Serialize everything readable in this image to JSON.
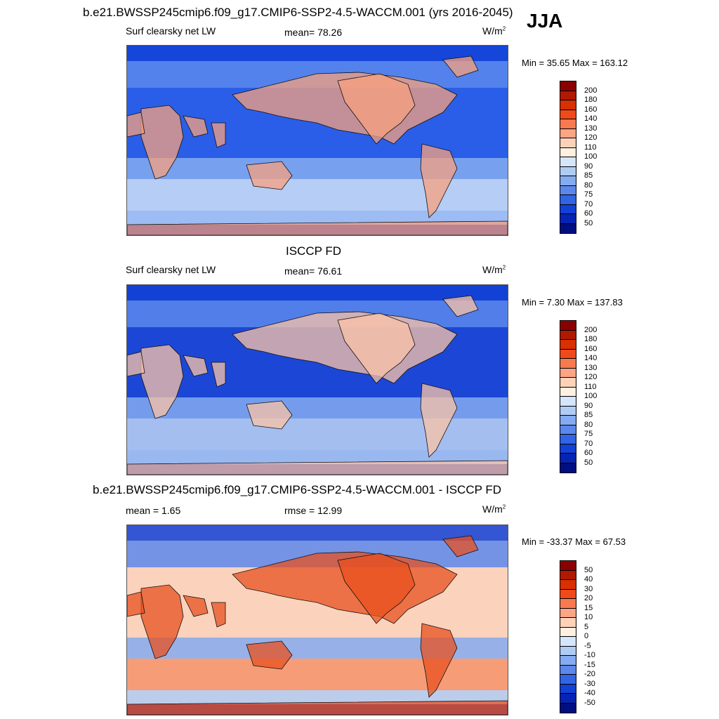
{
  "season": "JJA",
  "panels": [
    {
      "title": "b.e21.BWSSP245cmip6.f09_g17.CMIP6-SSP2-4.5-WACCM.001 (yrs 2016-2045)",
      "left_label": "Surf clearsky net LW",
      "center_label": "mean=  78.26",
      "units": "W/m",
      "units_sup": "2",
      "minmax": "Min =  35.65 Max = 163.12",
      "levels": [
        "200",
        "180",
        "160",
        "140",
        "130",
        "120",
        "110",
        "100",
        "90",
        "85",
        "80",
        "75",
        "70",
        "60",
        "50"
      ],
      "colors": [
        "#8b0000",
        "#b01a00",
        "#d83000",
        "#f04a1a",
        "#f77a50",
        "#fba585",
        "#fdd2b8",
        "#fff0e2",
        "#d6e6fa",
        "#b0ccf5",
        "#85abf0",
        "#5c88ec",
        "#3165e6",
        "#1241d6",
        "#0524b4",
        "#000e80"
      ],
      "ocean_color": "#2a5ee8",
      "land_tint": "#f7a07e",
      "polar_color": "#cfe0f7"
    },
    {
      "title": "ISCCP FD",
      "left_label": "Surf clearsky net LW",
      "center_label": "mean=  76.61",
      "units": "W/m",
      "units_sup": "2",
      "minmax": "Min =   7.30 Max = 137.83",
      "levels": [
        "200",
        "180",
        "160",
        "140",
        "130",
        "120",
        "110",
        "100",
        "90",
        "85",
        "80",
        "75",
        "70",
        "60",
        "50"
      ],
      "colors": [
        "#8b0000",
        "#b01a00",
        "#d83000",
        "#f04a1a",
        "#f77a50",
        "#fba585",
        "#fdd2b8",
        "#fff0e2",
        "#d6e6fa",
        "#b0ccf5",
        "#85abf0",
        "#5c88ec",
        "#3165e6",
        "#1241d6",
        "#0524b4",
        "#000e80"
      ],
      "ocean_color": "#1c47d6",
      "land_tint": "#fbc3a5",
      "polar_color": "#bcd3f5"
    },
    {
      "title": "b.e21.BWSSP245cmip6.f09_g17.CMIP6-SSP2-4.5-WACCM.001 - ISCCP FD",
      "left_label": "mean =   1.65",
      "center_label": "rmse =  12.99",
      "units": "W/m",
      "units_sup": "2",
      "minmax": "Min = -33.37 Max =  67.53",
      "levels": [
        "50",
        "40",
        "30",
        "20",
        "15",
        "10",
        "5",
        "0",
        "-5",
        "-10",
        "-15",
        "-20",
        "-30",
        "-40",
        "-50"
      ],
      "colors": [
        "#8b0000",
        "#b01a00",
        "#d83000",
        "#f04a1a",
        "#f77a50",
        "#fba585",
        "#fdd2b8",
        "#fff0e2",
        "#d6e6fa",
        "#b0ccf5",
        "#85abf0",
        "#5c88ec",
        "#3165e6",
        "#1241d6",
        "#0524b4",
        "#000e80"
      ],
      "ocean_color": "#fbd2bc",
      "land_tint": "#e8501f",
      "polar_color": "#f4946c"
    }
  ]
}
